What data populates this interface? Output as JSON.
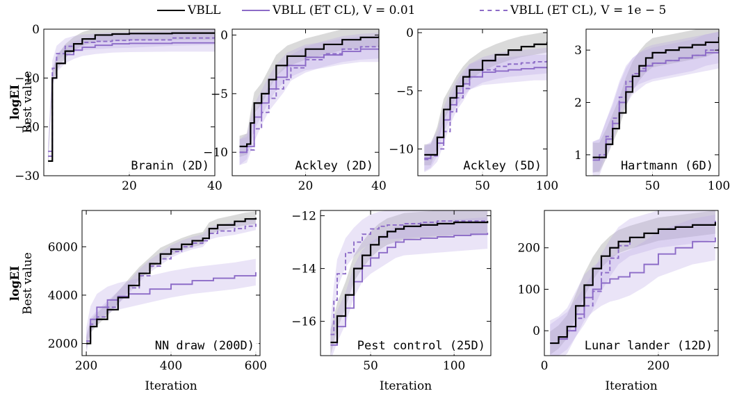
{
  "colors": {
    "vbll": "#000000",
    "et": "#8c6bc7",
    "band_vbll": "#9e9e9e",
    "band_et": "#b9a4e6"
  },
  "legend": {
    "items": [
      {
        "label": "VBLL",
        "color": "#000000",
        "style": "solid"
      },
      {
        "label": "VBLL (ET CL), V = 0.01",
        "color": "#8c6bc7",
        "style": "solid"
      },
      {
        "label": "VBLL (ET CL), V = 1e − 5",
        "color": "#8c6bc7",
        "style": "dashed"
      }
    ]
  },
  "row_labels": [
    {
      "bold": "logEI",
      "sub": "Best value"
    },
    {
      "bold": "logEI",
      "sub": "Best value"
    }
  ],
  "chart_data": [
    {
      "type": "line",
      "title": "Branin (2D)",
      "xlabel": "",
      "ylabel": "",
      "xlim": [
        0,
        40
      ],
      "ylim": [
        -30,
        0
      ],
      "xticks": [
        20,
        40
      ],
      "yticks": [
        -30,
        -20,
        -10,
        0
      ],
      "series": [
        {
          "name": "VBLL",
          "x": [
            1,
            2,
            3,
            5,
            7,
            9,
            12,
            16,
            20,
            30,
            40
          ],
          "values": [
            -27,
            -10,
            -7,
            -4.5,
            -3.0,
            -2.0,
            -1.2,
            -1.0,
            -0.9,
            -0.8,
            -0.8
          ],
          "band": 1.4
        },
        {
          "name": "VBLL (ET CL), V = 0.01",
          "x": [
            1,
            2,
            3,
            5,
            7,
            9,
            12,
            16,
            20,
            30,
            40
          ],
          "values": [
            -26,
            -10,
            -7,
            -5.2,
            -4.3,
            -3.7,
            -3.3,
            -3.0,
            -2.9,
            -2.8,
            -2.8
          ],
          "band": 1.8
        },
        {
          "name": "VBLL (ET CL), V = 1e − 5",
          "x": [
            1,
            2,
            3,
            5,
            7,
            9,
            12,
            16,
            20,
            30,
            40
          ],
          "values": [
            -25,
            -8,
            -5,
            -3.5,
            -3.0,
            -2.7,
            -2.5,
            -2.3,
            -2.2,
            -1.8,
            -1.6
          ],
          "band": 1.6
        }
      ]
    },
    {
      "type": "line",
      "title": "Ackley (2D)",
      "xlabel": "",
      "ylabel": "",
      "xlim": [
        0,
        40
      ],
      "ylim": [
        -12,
        0.5
      ],
      "xticks": [
        20,
        40
      ],
      "yticks": [
        -10,
        -5,
        0
      ],
      "series": [
        {
          "name": "VBLL",
          "x": [
            2,
            4,
            5,
            6,
            8,
            10,
            12,
            15,
            20,
            25,
            30,
            35,
            40
          ],
          "values": [
            -9.5,
            -9.3,
            -7.5,
            -5.8,
            -5.0,
            -3.8,
            -2.6,
            -1.8,
            -1.2,
            -0.8,
            -0.4,
            -0.2,
            -0.1
          ],
          "band": 0.9
        },
        {
          "name": "VBLL (ET CL), V = 0.01",
          "x": [
            2,
            4,
            6,
            8,
            10,
            12,
            15,
            20,
            25,
            30,
            35,
            40
          ],
          "values": [
            -10,
            -9.5,
            -7.0,
            -5.8,
            -4.6,
            -3.6,
            -2.6,
            -1.9,
            -1.7,
            -1.4,
            -1.2,
            -1.2
          ],
          "band": 1.1
        },
        {
          "name": "VBLL (ET CL), V = 1e − 5",
          "x": [
            2,
            4,
            6,
            8,
            10,
            12,
            14,
            16,
            20,
            25,
            30,
            35,
            40
          ],
          "values": [
            -10,
            -9.8,
            -8.0,
            -6.6,
            -5.4,
            -4.6,
            -3.8,
            -2.8,
            -2.1,
            -1.6,
            -1.2,
            -1.0,
            -0.9
          ],
          "band": 1.1
        }
      ]
    },
    {
      "type": "line",
      "title": "Ackley (5D)",
      "xlabel": "",
      "ylabel": "",
      "xlim": [
        0,
        100
      ],
      "ylim": [
        -12.3,
        0.3
      ],
      "xticks": [
        50,
        100
      ],
      "yticks": [
        -10,
        -5,
        0
      ],
      "series": [
        {
          "name": "VBLL",
          "x": [
            5,
            10,
            15,
            20,
            25,
            30,
            35,
            40,
            50,
            60,
            70,
            80,
            90,
            100
          ],
          "values": [
            -10.5,
            -10.5,
            -9.0,
            -6.6,
            -5.6,
            -4.6,
            -3.8,
            -3.2,
            -2.4,
            -1.9,
            -1.5,
            -1.2,
            -1.0,
            -0.8
          ],
          "band": 0.9
        },
        {
          "name": "VBLL (ET CL), V = 0.01",
          "x": [
            5,
            10,
            15,
            20,
            25,
            30,
            35,
            40,
            50,
            60,
            70,
            80,
            90,
            100
          ],
          "values": [
            -10.8,
            -10.5,
            -9.5,
            -7.5,
            -6.2,
            -5.2,
            -4.4,
            -3.8,
            -3.4,
            -3.3,
            -3.2,
            -3.1,
            -3.0,
            -3.0
          ],
          "band": 1.1
        },
        {
          "name": "VBLL (ET CL), V = 1e − 5",
          "x": [
            5,
            10,
            15,
            20,
            25,
            30,
            35,
            40,
            50,
            60,
            70,
            80,
            90,
            100
          ],
          "values": [
            -10.9,
            -10.6,
            -10.0,
            -8.5,
            -6.8,
            -5.6,
            -4.8,
            -3.8,
            -3.2,
            -2.9,
            -2.7,
            -2.6,
            -2.5,
            -2.4
          ],
          "band": 1.1
        }
      ]
    },
    {
      "type": "line",
      "title": "Hartmann (6D)",
      "xlabel": "",
      "ylabel": "",
      "xlim": [
        0,
        100
      ],
      "ylim": [
        0.6,
        3.4
      ],
      "xticks": [
        50,
        100
      ],
      "yticks": [
        1,
        2,
        3
      ],
      "series": [
        {
          "name": "VBLL",
          "x": [
            5,
            10,
            15,
            20,
            25,
            30,
            35,
            40,
            45,
            50,
            60,
            70,
            80,
            90,
            100
          ],
          "values": [
            0.95,
            0.95,
            1.2,
            1.5,
            1.8,
            2.2,
            2.5,
            2.7,
            2.85,
            2.95,
            3.0,
            3.05,
            3.1,
            3.15,
            3.25
          ],
          "band": 0.28
        },
        {
          "name": "VBLL (ET CL), V = 0.01",
          "x": [
            5,
            10,
            15,
            20,
            25,
            30,
            35,
            40,
            45,
            50,
            60,
            70,
            80,
            90,
            100
          ],
          "values": [
            0.9,
            0.95,
            1.3,
            1.6,
            2.0,
            2.3,
            2.5,
            2.6,
            2.7,
            2.75,
            2.8,
            2.85,
            2.9,
            2.95,
            3.0
          ],
          "band": 0.35
        },
        {
          "name": "VBLL (ET CL), V = 1e − 5",
          "x": [
            5,
            10,
            15,
            20,
            25,
            30,
            35,
            40,
            45,
            50,
            60,
            70,
            80,
            90,
            100
          ],
          "values": [
            0.95,
            1.0,
            1.35,
            1.7,
            2.1,
            2.4,
            2.55,
            2.65,
            2.7,
            2.75,
            2.8,
            2.85,
            2.9,
            3.0,
            3.05
          ],
          "band": 0.3
        }
      ]
    },
    {
      "type": "line",
      "title": "NN draw (200D)",
      "xlabel": "Iteration",
      "ylabel": "",
      "xlim": [
        190,
        610
      ],
      "ylim": [
        1500,
        7500
      ],
      "xticks": [
        200,
        400,
        600
      ],
      "yticks": [
        2000,
        4000,
        6000
      ],
      "series": [
        {
          "name": "VBLL",
          "x": [
            200,
            210,
            225,
            250,
            275,
            300,
            325,
            350,
            375,
            400,
            425,
            450,
            475,
            490,
            510,
            550,
            575,
            600
          ],
          "values": [
            2000,
            2700,
            3000,
            3400,
            3900,
            4400,
            4900,
            5300,
            5700,
            5900,
            6100,
            6250,
            6350,
            6750,
            6900,
            7050,
            7150,
            7200
          ],
          "band": 260
        },
        {
          "name": "VBLL (ET CL), V = 0.01",
          "x": [
            200,
            210,
            225,
            250,
            275,
            300,
            350,
            400,
            450,
            500,
            550,
            600
          ],
          "values": [
            2100,
            3000,
            3500,
            3800,
            3950,
            4050,
            4250,
            4450,
            4600,
            4700,
            4800,
            4950
          ],
          "band": 550
        },
        {
          "name": "VBLL (ET CL), V = 1e − 5",
          "x": [
            200,
            210,
            225,
            250,
            275,
            300,
            325,
            350,
            375,
            400,
            425,
            450,
            475,
            490,
            510,
            550,
            575,
            600
          ],
          "values": [
            2100,
            2800,
            3100,
            3500,
            3900,
            4300,
            4800,
            5200,
            5500,
            5800,
            6000,
            6150,
            6250,
            6550,
            6650,
            6750,
            6850,
            6950
          ],
          "band": 260
        }
      ]
    },
    {
      "type": "line",
      "title": "Pest control (25D)",
      "xlabel": "Iteration",
      "ylabel": "",
      "xlim": [
        20,
        122
      ],
      "ylim": [
        -17.3,
        -11.8
      ],
      "xticks": [
        50,
        100
      ],
      "yticks": [
        -16,
        -14,
        -12
      ],
      "series": [
        {
          "name": "VBLL",
          "x": [
            26,
            30,
            35,
            40,
            45,
            50,
            55,
            60,
            65,
            70,
            80,
            90,
            100,
            110,
            120
          ],
          "values": [
            -16.8,
            -15.8,
            -15.0,
            -14.0,
            -13.5,
            -13.1,
            -12.8,
            -12.6,
            -12.5,
            -12.4,
            -12.35,
            -12.3,
            -12.25,
            -12.25,
            -12.2
          ],
          "band": 0.5
        },
        {
          "name": "VBLL (ET CL), V = 0.01",
          "x": [
            26,
            30,
            35,
            40,
            45,
            50,
            55,
            60,
            65,
            70,
            80,
            90,
            100,
            110,
            120
          ],
          "values": [
            -16.9,
            -16.2,
            -15.5,
            -14.5,
            -13.9,
            -13.6,
            -13.4,
            -13.2,
            -13.0,
            -12.9,
            -12.85,
            -12.8,
            -12.75,
            -12.7,
            -12.65
          ],
          "band": 0.6
        },
        {
          "name": "VBLL (ET CL), V = 1e − 5",
          "x": [
            26,
            28,
            30,
            35,
            40,
            45,
            50,
            55,
            60,
            70,
            80,
            90,
            100,
            110,
            120
          ],
          "values": [
            -16.5,
            -15.2,
            -14.2,
            -13.4,
            -13.0,
            -12.7,
            -12.5,
            -12.4,
            -12.35,
            -12.3,
            -12.25,
            -12.2,
            -12.2,
            -12.2,
            -12.2
          ],
          "band": 0.55
        }
      ]
    },
    {
      "type": "line",
      "title": "Lunar lander (12D)",
      "xlabel": "Iteration",
      "ylabel": "",
      "xlim": [
        0,
        305
      ],
      "ylim": [
        -60,
        290
      ],
      "xticks": [
        0,
        200
      ],
      "yticks": [
        0,
        100,
        200
      ],
      "series": [
        {
          "name": "VBLL",
          "x": [
            10,
            25,
            40,
            55,
            70,
            85,
            100,
            115,
            130,
            150,
            175,
            200,
            230,
            260,
            300
          ],
          "values": [
            -30,
            -15,
            10,
            60,
            110,
            150,
            180,
            200,
            215,
            225,
            235,
            245,
            250,
            255,
            262
          ],
          "band": 28
        },
        {
          "name": "VBLL (ET CL), V = 0.01",
          "x": [
            10,
            25,
            40,
            55,
            70,
            85,
            100,
            115,
            130,
            150,
            175,
            200,
            230,
            260,
            300
          ],
          "values": [
            -30,
            -20,
            0,
            40,
            80,
            100,
            115,
            125,
            130,
            140,
            160,
            185,
            200,
            215,
            225
          ],
          "band": 55
        },
        {
          "name": "VBLL (ET CL), V = 1e − 5",
          "x": [
            10,
            25,
            40,
            55,
            70,
            85,
            100,
            115,
            130,
            150,
            175,
            200,
            230,
            260,
            300
          ],
          "values": [
            -30,
            -15,
            0,
            30,
            60,
            95,
            140,
            175,
            205,
            225,
            235,
            245,
            250,
            255,
            265
          ],
          "band": 45
        }
      ]
    }
  ]
}
